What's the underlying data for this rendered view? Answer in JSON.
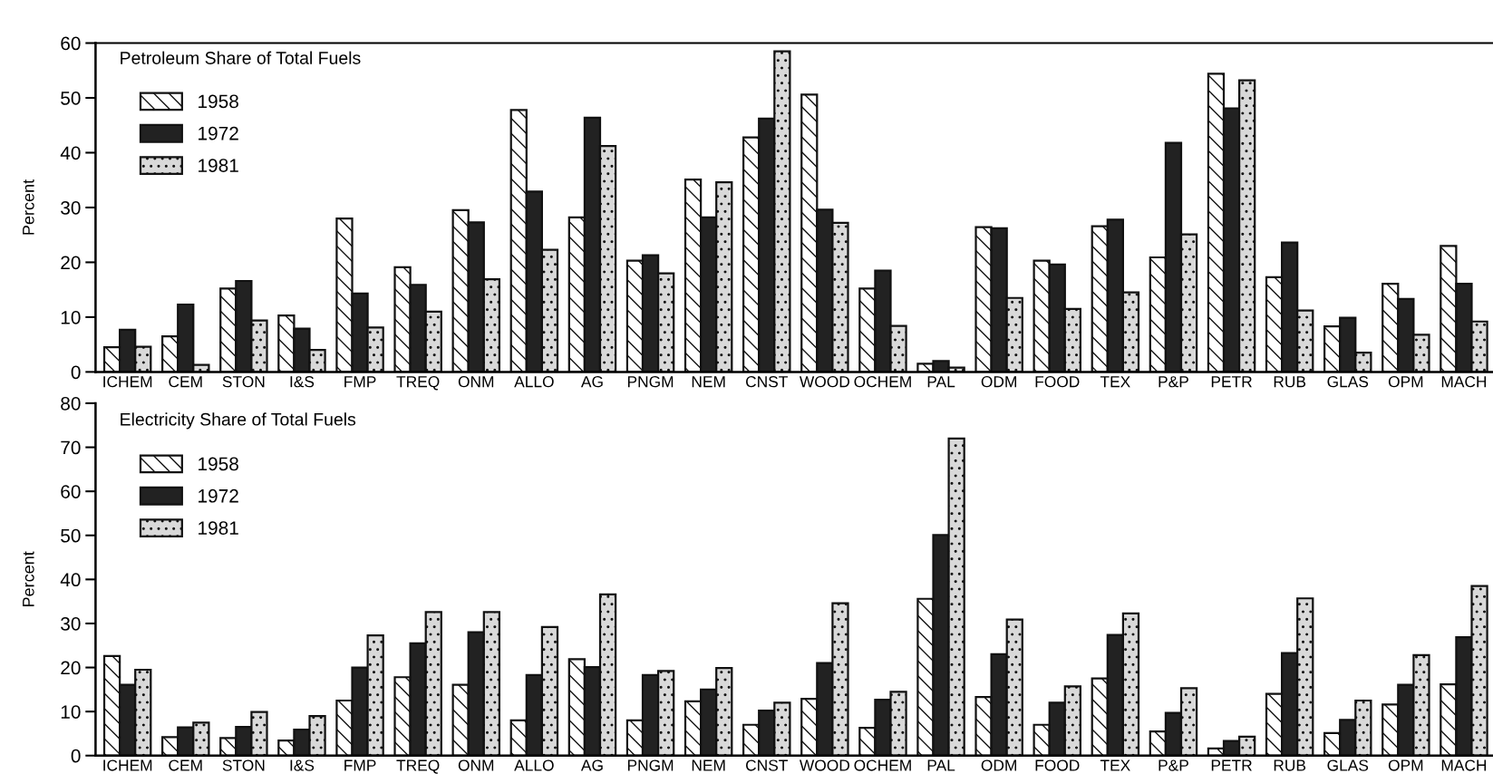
{
  "chart_data": [
    {
      "type": "bar",
      "title": "Petroleum Share of Total Fuels",
      "ylabel": "Percent",
      "categories": [
        "ICHEM",
        "CEM",
        "STON",
        "I&S",
        "FMP",
        "TREQ",
        "ONM",
        "ALLO",
        "AG",
        "PNGM",
        "NEM",
        "CNST",
        "WOOD",
        "OCHEM",
        "PAL",
        "ODM",
        "FOOD",
        "TEX",
        "P&P",
        "PETR",
        "RUB",
        "GLAS",
        "OPM",
        "MACH"
      ],
      "series": [
        {
          "name": "1958",
          "color": "#ffffff",
          "values": [
            4.5,
            6.5,
            15.2,
            10.3,
            28,
            19.1,
            29.5,
            47.8,
            28.2,
            20.3,
            35.1,
            42.8,
            50.6,
            15.2,
            1.5,
            26.4,
            20.3,
            26.6,
            20.9,
            54.4,
            17.3,
            8.3,
            16.1,
            23.0
          ]
        },
        {
          "name": "1972",
          "color": "#222222",
          "values": [
            7.7,
            12.3,
            16.6,
            7.9,
            14.3,
            15.9,
            27.3,
            32.9,
            46.4,
            21.3,
            28.2,
            46.2,
            29.6,
            18.5,
            2.0,
            26.2,
            19.6,
            27.8,
            41.8,
            48.1,
            23.6,
            9.9,
            13.3,
            16.1
          ]
        },
        {
          "name": "1981",
          "color": "#d9d9d9",
          "values": [
            4.6,
            1.3,
            9.4,
            4.0,
            8.1,
            11.0,
            16.9,
            22.3,
            41.2,
            18.0,
            34.6,
            58.5,
            27.2,
            8.4,
            0.8,
            13.5,
            11.5,
            14.5,
            25.1,
            53.2,
            11.2,
            3.5,
            6.8,
            9.2
          ]
        }
      ],
      "ylim": [
        0,
        60
      ],
      "yticks": [
        0,
        10,
        20,
        30,
        40,
        50,
        60
      ],
      "legend": "top left"
    },
    {
      "type": "bar",
      "title": "Electricity Share of Total Fuels",
      "ylabel": "Percent",
      "categories": [
        "ICHEM",
        "CEM",
        "STON",
        "I&S",
        "FMP",
        "TREQ",
        "ONM",
        "ALLO",
        "AG",
        "PNGM",
        "NEM",
        "CNST",
        "WOOD",
        "OCHEM",
        "PAL",
        "ODM",
        "FOOD",
        "TEX",
        "P&P",
        "PETR",
        "RUB",
        "GLAS",
        "OPM",
        "MACH"
      ],
      "series": [
        {
          "name": "1958",
          "color": "#ffffff",
          "values": [
            22.6,
            4.2,
            4.0,
            3.4,
            12.5,
            17.8,
            16.1,
            8.0,
            21.9,
            8.0,
            12.3,
            7.0,
            12.9,
            6.3,
            35.6,
            13.3,
            7.0,
            17.5,
            5.5,
            1.6,
            14.0,
            5.1,
            11.6,
            16.2
          ]
        },
        {
          "name": "1972",
          "color": "#222222",
          "values": [
            16.1,
            6.4,
            6.5,
            5.9,
            20.0,
            25.5,
            28.0,
            18.3,
            20.1,
            18.3,
            15.0,
            10.2,
            21.0,
            12.7,
            50.1,
            23.0,
            12.0,
            27.4,
            9.7,
            3.3,
            23.3,
            8.1,
            16.1,
            26.9
          ]
        },
        {
          "name": "1981",
          "color": "#d9d9d9",
          "values": [
            19.5,
            7.5,
            9.9,
            9.0,
            27.3,
            32.6,
            32.6,
            29.2,
            36.6,
            19.2,
            19.9,
            12.0,
            34.6,
            14.5,
            72.0,
            30.9,
            15.7,
            32.3,
            15.3,
            4.3,
            35.7,
            12.5,
            22.8,
            38.5
          ]
        }
      ],
      "ylim": [
        0,
        80
      ],
      "yticks": [
        0,
        10,
        20,
        30,
        40,
        50,
        60,
        70,
        80
      ],
      "legend": "top left"
    }
  ]
}
